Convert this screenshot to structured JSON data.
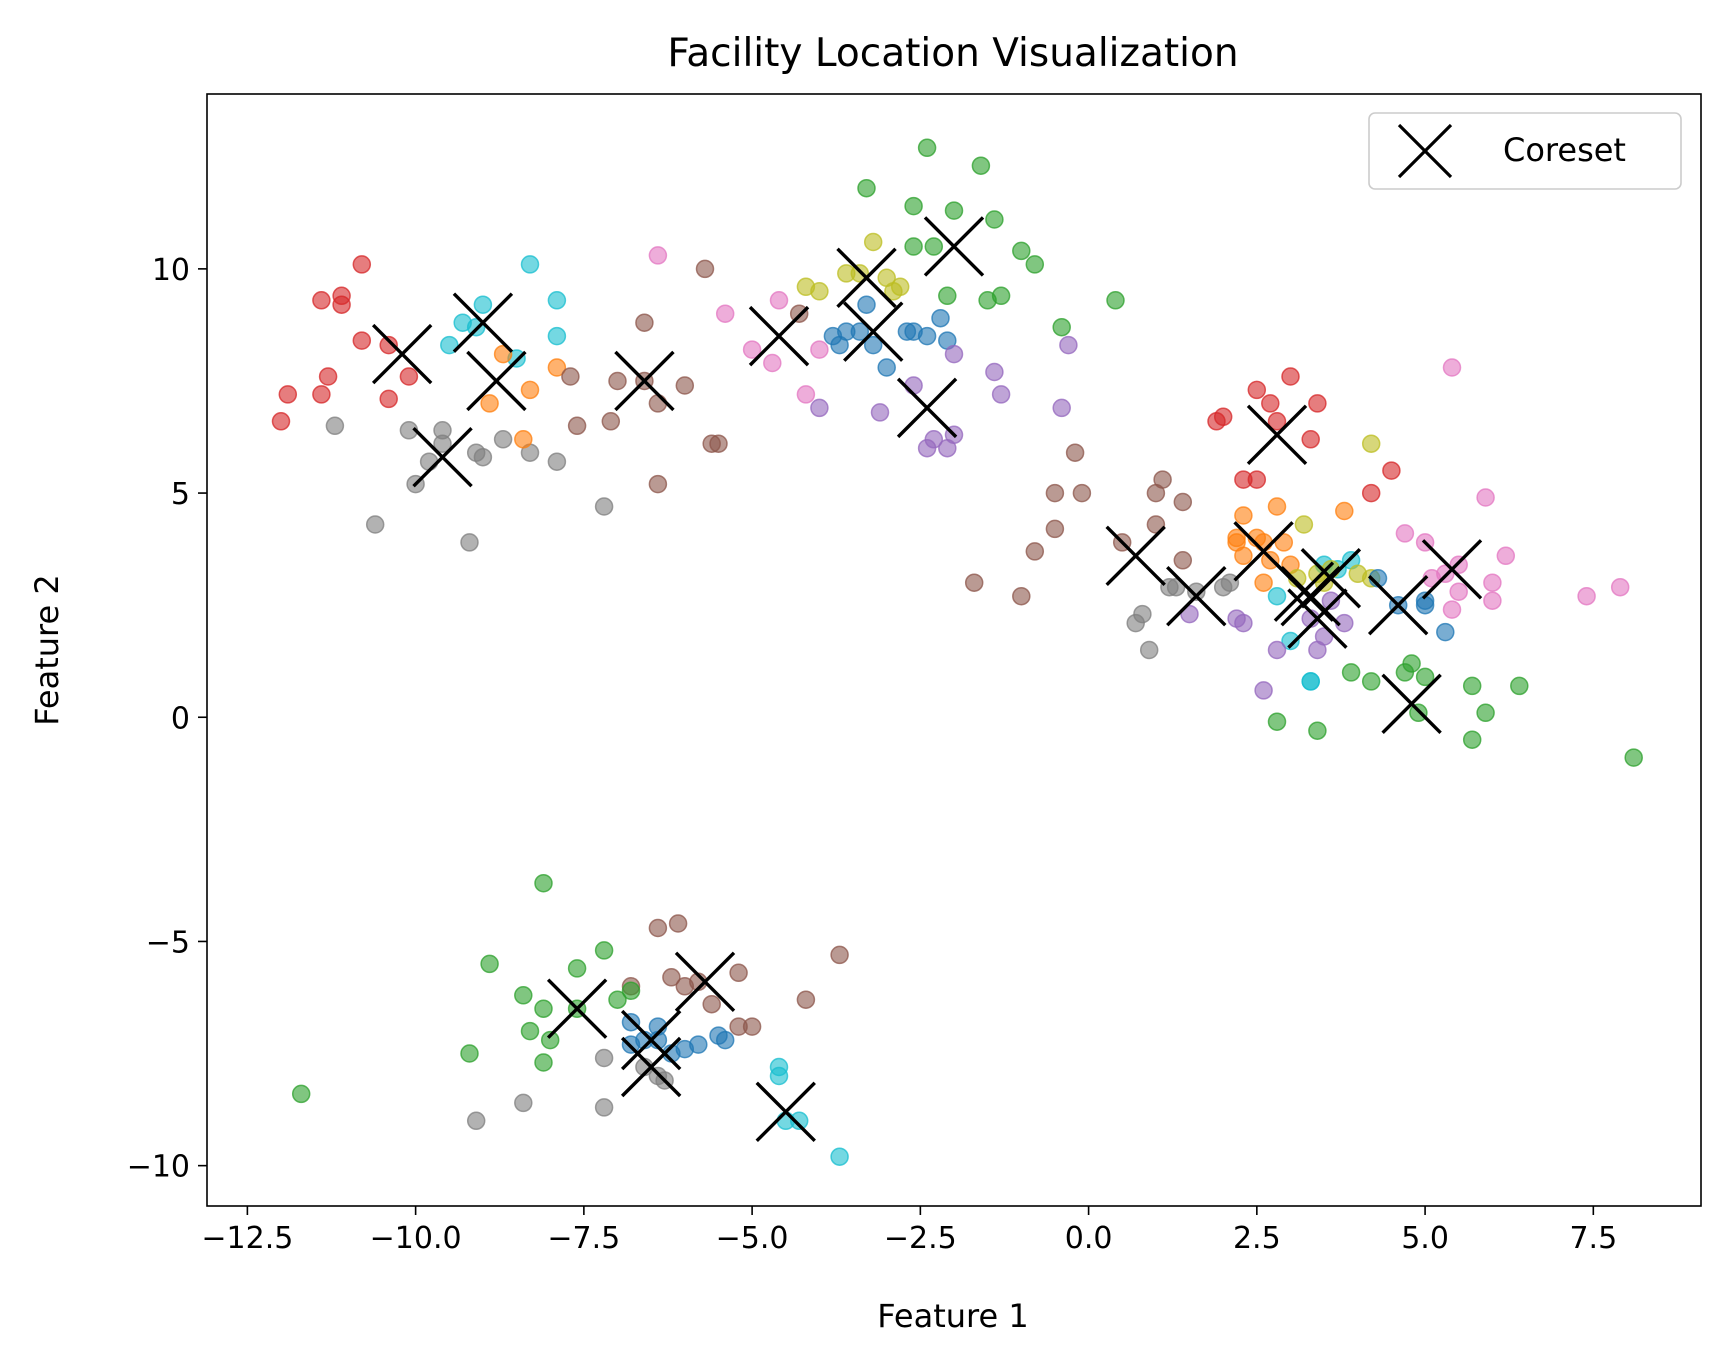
{
  "chart_data": {
    "type": "scatter",
    "title": "Facility Location Visualization",
    "xlabel": "Feature 1",
    "ylabel": "Feature 2",
    "xlim": [
      -13.1,
      9.1
    ],
    "ylim": [
      -10.9,
      13.9
    ],
    "grid": false,
    "legend": {
      "placement": "upper right",
      "entries": [
        "Coreset"
      ]
    },
    "x_ticks": [
      {
        "value": -12.5,
        "label": "−12.5"
      },
      {
        "value": -10.0,
        "label": "−10.0"
      },
      {
        "value": -7.5,
        "label": "−7.5"
      },
      {
        "value": -5.0,
        "label": "−5.0"
      },
      {
        "value": -2.5,
        "label": "−2.5"
      },
      {
        "value": 0.0,
        "label": "0.0"
      },
      {
        "value": 2.5,
        "label": "2.5"
      },
      {
        "value": 5.0,
        "label": "5.0"
      },
      {
        "value": 7.5,
        "label": "7.5"
      }
    ],
    "y_ticks": [
      {
        "value": -10,
        "label": "−10"
      },
      {
        "value": -5,
        "label": "−5"
      },
      {
        "value": 0,
        "label": "0"
      },
      {
        "value": 5,
        "label": "5"
      },
      {
        "value": 10,
        "label": "10"
      }
    ],
    "point_groups": [
      {
        "color": "#d62728",
        "points": [
          [
            -12.0,
            6.6
          ],
          [
            -11.9,
            7.2
          ],
          [
            -11.4,
            9.3
          ],
          [
            -11.4,
            7.2
          ],
          [
            -11.3,
            7.6
          ],
          [
            -11.1,
            9.2
          ],
          [
            -11.1,
            9.4
          ],
          [
            -10.8,
            10.1
          ],
          [
            -10.8,
            8.4
          ],
          [
            -10.4,
            8.3
          ],
          [
            -10.4,
            7.1
          ],
          [
            -10.1,
            7.6
          ],
          [
            1.9,
            6.6
          ],
          [
            2.0,
            6.7
          ],
          [
            2.3,
            5.3
          ],
          [
            2.5,
            5.3
          ],
          [
            2.5,
            7.3
          ],
          [
            2.7,
            7.0
          ],
          [
            2.8,
            6.6
          ],
          [
            3.0,
            7.6
          ],
          [
            3.3,
            6.2
          ],
          [
            3.4,
            7.0
          ],
          [
            4.2,
            5.0
          ],
          [
            4.5,
            5.5
          ]
        ]
      },
      {
        "color": "#7f7f7f",
        "points": [
          [
            -11.2,
            6.5
          ],
          [
            -10.6,
            4.3
          ],
          [
            -10.1,
            6.4
          ],
          [
            -10.0,
            5.2
          ],
          [
            -9.8,
            5.7
          ],
          [
            -9.6,
            6.4
          ],
          [
            -9.6,
            6.1
          ],
          [
            -9.2,
            3.9
          ],
          [
            -9.1,
            5.9
          ],
          [
            -9.0,
            5.8
          ],
          [
            -8.7,
            6.2
          ],
          [
            -8.3,
            5.9
          ],
          [
            -7.9,
            5.7
          ],
          [
            -7.2,
            4.7
          ],
          [
            -7.2,
            -7.6
          ],
          [
            -7.2,
            -8.7
          ],
          [
            -8.4,
            -8.6
          ],
          [
            -9.1,
            -9.0
          ],
          [
            -6.6,
            -7.8
          ],
          [
            -6.4,
            -8.0
          ],
          [
            -6.3,
            -8.1
          ],
          [
            1.2,
            2.9
          ],
          [
            1.3,
            2.9
          ],
          [
            1.6,
            2.8
          ],
          [
            2.0,
            2.9
          ],
          [
            2.1,
            3.0
          ],
          [
            0.7,
            2.1
          ],
          [
            0.8,
            2.3
          ],
          [
            0.9,
            1.5
          ]
        ]
      },
      {
        "color": "#17becf",
        "points": [
          [
            -9.3,
            8.8
          ],
          [
            -9.0,
            9.2
          ],
          [
            -9.1,
            8.7
          ],
          [
            -9.5,
            8.3
          ],
          [
            -8.5,
            8.0
          ],
          [
            -8.3,
            10.1
          ],
          [
            -7.9,
            9.3
          ],
          [
            -7.9,
            8.5
          ],
          [
            -4.6,
            -7.8
          ],
          [
            -4.6,
            -8.0
          ],
          [
            -4.5,
            -9.0
          ],
          [
            -4.3,
            -9.0
          ],
          [
            -3.7,
            -9.8
          ],
          [
            2.8,
            2.7
          ],
          [
            3.0,
            1.7
          ],
          [
            3.3,
            0.8
          ],
          [
            3.3,
            0.8
          ],
          [
            3.5,
            3.4
          ],
          [
            3.7,
            3.3
          ],
          [
            3.9,
            3.5
          ]
        ]
      },
      {
        "color": "#ff7f0e",
        "points": [
          [
            -8.9,
            7.0
          ],
          [
            -8.7,
            8.1
          ],
          [
            -8.3,
            7.3
          ],
          [
            -8.4,
            6.2
          ],
          [
            -7.9,
            7.8
          ],
          [
            2.2,
            3.9
          ],
          [
            2.3,
            4.5
          ],
          [
            2.2,
            4.0
          ],
          [
            2.3,
            3.6
          ],
          [
            2.5,
            4.0
          ],
          [
            2.6,
            3.9
          ],
          [
            2.7,
            3.5
          ],
          [
            2.8,
            4.7
          ],
          [
            2.9,
            3.9
          ],
          [
            3.0,
            3.4
          ],
          [
            2.6,
            3.0
          ],
          [
            3.8,
            4.6
          ]
        ]
      },
      {
        "color": "#8c564b",
        "points": [
          [
            -7.7,
            7.6
          ],
          [
            -7.6,
            6.5
          ],
          [
            -7.1,
            6.6
          ],
          [
            -7.0,
            7.5
          ],
          [
            -6.6,
            8.8
          ],
          [
            -6.6,
            7.5
          ],
          [
            -6.4,
            5.2
          ],
          [
            -6.4,
            7.0
          ],
          [
            -6.0,
            7.4
          ],
          [
            -5.7,
            10.0
          ],
          [
            -5.6,
            6.1
          ],
          [
            -5.5,
            6.1
          ],
          [
            -4.3,
            9.0
          ],
          [
            -1.7,
            3.0
          ],
          [
            -1.0,
            2.7
          ],
          [
            -0.8,
            3.7
          ],
          [
            -0.5,
            4.2
          ],
          [
            -0.5,
            5.0
          ],
          [
            -0.2,
            5.9
          ],
          [
            -0.1,
            5.0
          ],
          [
            0.5,
            3.9
          ],
          [
            1.0,
            4.3
          ],
          [
            1.0,
            5.0
          ],
          [
            1.1,
            5.3
          ],
          [
            1.4,
            3.5
          ],
          [
            1.4,
            4.8
          ],
          [
            -6.8,
            -6.0
          ],
          [
            -6.4,
            -4.7
          ],
          [
            -6.2,
            -5.8
          ],
          [
            -6.1,
            -4.6
          ],
          [
            -6.0,
            -6.0
          ],
          [
            -5.8,
            -5.9
          ],
          [
            -5.6,
            -6.4
          ],
          [
            -5.2,
            -5.7
          ],
          [
            -5.2,
            -6.9
          ],
          [
            -5.0,
            -6.9
          ],
          [
            -4.2,
            -6.3
          ],
          [
            -3.7,
            -5.3
          ]
        ]
      },
      {
        "color": "#e377c2",
        "points": [
          [
            -6.4,
            10.3
          ],
          [
            -5.4,
            9.0
          ],
          [
            -5.0,
            8.2
          ],
          [
            -4.7,
            7.9
          ],
          [
            -4.6,
            9.3
          ],
          [
            -4.2,
            7.2
          ],
          [
            -4.0,
            8.2
          ],
          [
            4.7,
            4.1
          ],
          [
            5.1,
            3.1
          ],
          [
            5.3,
            3.2
          ],
          [
            5.5,
            3.4
          ],
          [
            5.5,
            2.8
          ],
          [
            5.4,
            2.4
          ],
          [
            5.4,
            7.8
          ],
          [
            5.9,
            4.9
          ],
          [
            6.0,
            2.6
          ],
          [
            6.0,
            3.0
          ],
          [
            6.2,
            3.6
          ],
          [
            7.4,
            2.7
          ],
          [
            7.9,
            2.9
          ],
          [
            5.0,
            3.9
          ]
        ]
      },
      {
        "color": "#bcbd22",
        "points": [
          [
            -4.2,
            9.6
          ],
          [
            -4.0,
            9.5
          ],
          [
            -3.6,
            9.9
          ],
          [
            -3.4,
            9.9
          ],
          [
            -3.2,
            10.6
          ],
          [
            -3.0,
            9.8
          ],
          [
            -2.9,
            9.5
          ],
          [
            -2.8,
            9.6
          ],
          [
            3.2,
            4.3
          ],
          [
            3.1,
            3.1
          ],
          [
            3.4,
            3.2
          ],
          [
            3.5,
            3.0
          ],
          [
            3.6,
            3.3
          ],
          [
            4.0,
            3.2
          ],
          [
            4.2,
            3.1
          ],
          [
            4.2,
            6.1
          ]
        ]
      },
      {
        "color": "#1f77b4",
        "points": [
          [
            -3.8,
            8.5
          ],
          [
            -3.7,
            8.3
          ],
          [
            -3.6,
            8.6
          ],
          [
            -3.4,
            8.6
          ],
          [
            -3.3,
            9.2
          ],
          [
            -3.2,
            8.3
          ],
          [
            -3.0,
            7.8
          ],
          [
            -2.7,
            8.6
          ],
          [
            -2.6,
            8.6
          ],
          [
            -2.4,
            8.5
          ],
          [
            -2.2,
            8.9
          ],
          [
            -2.1,
            8.4
          ],
          [
            -6.8,
            -6.8
          ],
          [
            -6.8,
            -7.3
          ],
          [
            -6.6,
            -7.2
          ],
          [
            -6.4,
            -6.9
          ],
          [
            -6.4,
            -7.2
          ],
          [
            -6.2,
            -7.5
          ],
          [
            -6.0,
            -7.4
          ],
          [
            -5.8,
            -7.3
          ],
          [
            -5.5,
            -7.1
          ],
          [
            -5.4,
            -7.2
          ],
          [
            4.3,
            3.1
          ],
          [
            4.6,
            2.5
          ],
          [
            5.0,
            2.6
          ],
          [
            5.0,
            2.5
          ],
          [
            5.3,
            1.9
          ]
        ]
      },
      {
        "color": "#9467bd",
        "points": [
          [
            -4.0,
            6.9
          ],
          [
            -3.1,
            6.8
          ],
          [
            -2.6,
            7.4
          ],
          [
            -2.4,
            6.0
          ],
          [
            -2.3,
            6.2
          ],
          [
            -2.1,
            6.0
          ],
          [
            -2.0,
            6.3
          ],
          [
            -2.0,
            8.1
          ],
          [
            -1.4,
            7.7
          ],
          [
            -1.3,
            7.2
          ],
          [
            -0.4,
            6.9
          ],
          [
            -0.3,
            8.3
          ],
          [
            1.5,
            2.3
          ],
          [
            2.2,
            2.2
          ],
          [
            2.3,
            2.1
          ],
          [
            2.6,
            0.6
          ],
          [
            2.8,
            1.5
          ],
          [
            3.3,
            2.2
          ],
          [
            3.4,
            1.5
          ],
          [
            3.5,
            1.8
          ],
          [
            3.6,
            2.6
          ],
          [
            3.8,
            2.1
          ]
        ]
      },
      {
        "color": "#2ca02c",
        "points": [
          [
            -3.3,
            11.8
          ],
          [
            -2.6,
            11.4
          ],
          [
            -2.6,
            10.5
          ],
          [
            -2.4,
            12.7
          ],
          [
            -2.3,
            10.5
          ],
          [
            -2.0,
            11.3
          ],
          [
            -1.6,
            12.3
          ],
          [
            -1.4,
            11.1
          ],
          [
            -1.5,
            9.3
          ],
          [
            -1.3,
            9.4
          ],
          [
            -1.0,
            10.4
          ],
          [
            -0.8,
            10.1
          ],
          [
            -2.1,
            9.4
          ],
          [
            -0.4,
            8.7
          ],
          [
            0.4,
            9.3
          ],
          [
            -8.1,
            -3.7
          ],
          [
            -8.9,
            -5.5
          ],
          [
            -8.4,
            -6.2
          ],
          [
            -8.3,
            -7.0
          ],
          [
            -8.1,
            -6.5
          ],
          [
            -8.0,
            -7.2
          ],
          [
            -8.1,
            -7.7
          ],
          [
            -7.6,
            -5.6
          ],
          [
            -7.6,
            -6.5
          ],
          [
            -7.2,
            -5.2
          ],
          [
            -7.0,
            -6.3
          ],
          [
            -6.8,
            -6.1
          ],
          [
            -11.7,
            -8.4
          ],
          [
            -9.2,
            -7.5
          ],
          [
            2.8,
            -0.1
          ],
          [
            3.4,
            -0.3
          ],
          [
            3.9,
            1.0
          ],
          [
            4.2,
            0.8
          ],
          [
            4.7,
            1.0
          ],
          [
            4.8,
            1.2
          ],
          [
            4.9,
            0.1
          ],
          [
            5.0,
            0.9
          ],
          [
            5.7,
            0.7
          ],
          [
            5.7,
            -0.5
          ],
          [
            5.9,
            0.1
          ],
          [
            6.4,
            0.7
          ],
          [
            8.1,
            -0.9
          ]
        ]
      }
    ],
    "coreset": [
      [
        -10.2,
        8.1
      ],
      [
        -9.0,
        8.8
      ],
      [
        -8.8,
        7.5
      ],
      [
        -9.6,
        5.8
      ],
      [
        -6.6,
        7.5
      ],
      [
        -4.6,
        8.5
      ],
      [
        -3.3,
        9.8
      ],
      [
        -3.2,
        8.6
      ],
      [
        -2.0,
        10.5
      ],
      [
        -2.4,
        6.9
      ],
      [
        -7.6,
        -6.5
      ],
      [
        -5.7,
        -5.9
      ],
      [
        -6.5,
        -7.2
      ],
      [
        -6.5,
        -7.8
      ],
      [
        -4.5,
        -8.8
      ],
      [
        0.7,
        3.6
      ],
      [
        1.6,
        2.7
      ],
      [
        2.6,
        3.7
      ],
      [
        2.8,
        6.3
      ],
      [
        3.2,
        2.8
      ],
      [
        3.3,
        2.7
      ],
      [
        3.4,
        2.2
      ],
      [
        3.6,
        3.1
      ],
      [
        4.6,
        2.5
      ],
      [
        5.4,
        3.3
      ],
      [
        4.8,
        0.3
      ]
    ]
  }
}
